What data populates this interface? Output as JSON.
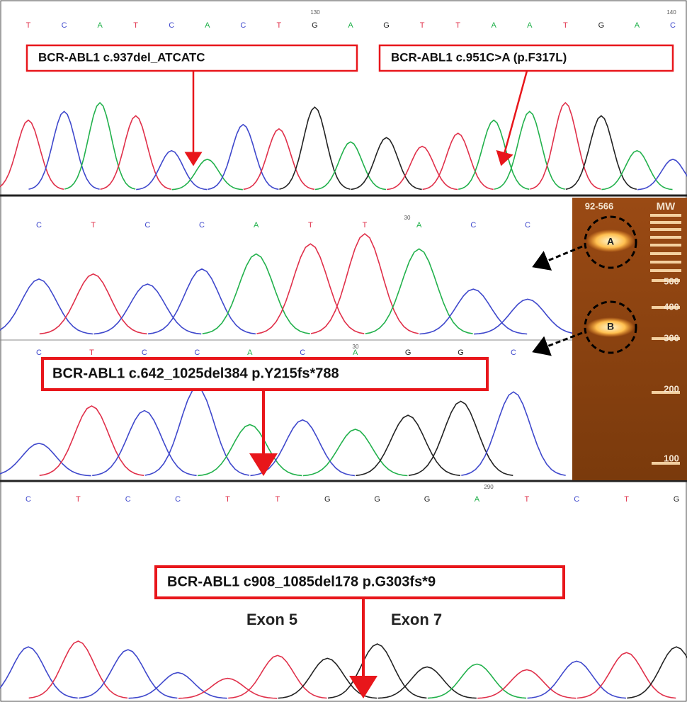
{
  "base_colors": {
    "A": "#22b14c",
    "C": "#3f48cc",
    "G": "#222222",
    "T": "#e0304a"
  },
  "panels": [
    {
      "bases": [
        "T",
        "C",
        "A",
        "T",
        "C",
        "A",
        "C",
        "T",
        "G",
        "A",
        "G",
        "T",
        "T",
        "A",
        "A",
        "T",
        "G",
        "A",
        "C"
      ],
      "positions": [
        130,
        140
      ]
    },
    {
      "bases": [
        "C",
        "T",
        "C",
        "C",
        "A",
        "T",
        "T",
        "A",
        "C",
        "C"
      ],
      "positions": [
        30
      ]
    },
    {
      "bases": [
        "C",
        "T",
        "C",
        "C",
        "A",
        "C",
        "A",
        "G",
        "G",
        "C"
      ],
      "positions": [
        30
      ]
    },
    {
      "bases": [
        "C",
        "T",
        "C",
        "C",
        "T",
        "T",
        "G",
        "G",
        "G",
        "A",
        "T",
        "C",
        "T",
        "G"
      ],
      "positions": [
        290
      ]
    }
  ],
  "annotations": [
    "BCR-ABL1 c.937del_ATCATC",
    "BCR-ABL1 c.951C>A (p.F317L)",
    "BCR-ABL1 c.642_1025del384 p.Y215fs*788",
    "BCR-ABL1 c908_1085del178 p.G303fs*9"
  ],
  "gel": {
    "lanes": [
      "92-566",
      "MW"
    ],
    "bands": [
      "A",
      "B"
    ],
    "ladder": [
      500,
      400,
      300,
      200,
      100
    ]
  },
  "exon_labels": [
    "Exon 5",
    "Exon 7"
  ]
}
